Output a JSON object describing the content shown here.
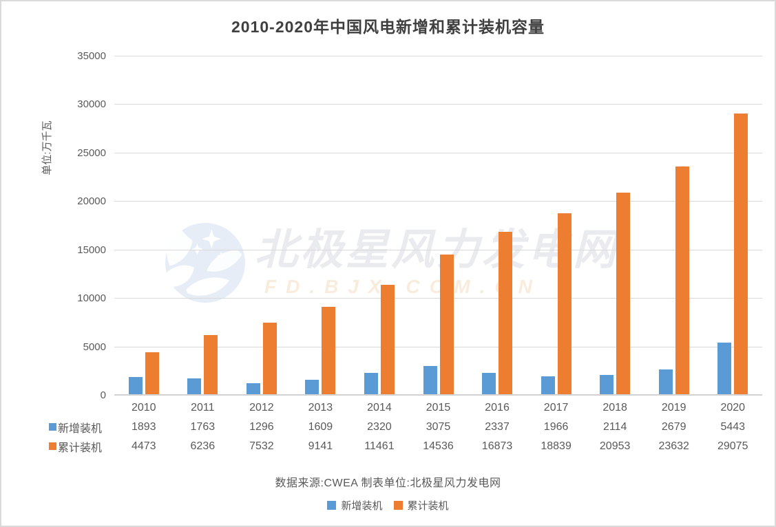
{
  "title": "2010-2020年中国风电新增和累计装机容量",
  "chart_data": {
    "type": "bar",
    "title": "2010-2020年中国风电新增和累计装机容量",
    "ylabel": "单位:万千瓦",
    "xlabel": "",
    "categories": [
      "2010",
      "2011",
      "2012",
      "2013",
      "2014",
      "2015",
      "2016",
      "2017",
      "2018",
      "2019",
      "2020"
    ],
    "series": [
      {
        "name": "新增装机",
        "color": "#5B9BD5",
        "values": [
          1893,
          1763,
          1296,
          1609,
          2320,
          3075,
          2337,
          1966,
          2114,
          2679,
          5443
        ]
      },
      {
        "name": "累计装机",
        "color": "#ED7D31",
        "values": [
          4473,
          6236,
          7532,
          9141,
          11461,
          14536,
          16873,
          18839,
          20953,
          23632,
          29075
        ]
      }
    ],
    "ylim": [
      0,
      35000
    ],
    "y_ticks": [
      0,
      5000,
      10000,
      15000,
      20000,
      25000,
      30000,
      35000
    ],
    "grid": true,
    "legend_position": "bottom",
    "data_table_shown": true
  },
  "source_note": "数据来源:CWEA 制表单位:北极星风力发电网",
  "watermark": {
    "logo": "star-moon-badge-logo",
    "text": "北极星风力发电网",
    "subtext": "FD.BJX.COM.CN"
  },
  "colors": {
    "series_new": "#5B9BD5",
    "series_cumulative": "#ED7D31",
    "text": "#595959",
    "gridline": "#d9d9d9"
  }
}
